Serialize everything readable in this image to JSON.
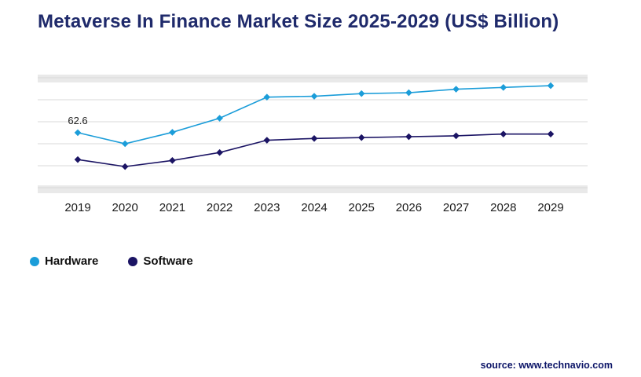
{
  "title": "Metaverse In Finance Market Size 2025-2029 (US$ Billion)",
  "chart_data": {
    "type": "line",
    "title": "Metaverse In Finance Market Size 2025-2029 (US$ Billion)",
    "categories": [
      "2019",
      "2020",
      "2021",
      "2022",
      "2023",
      "2024",
      "2025",
      "2026",
      "2027",
      "2028",
      "2029"
    ],
    "series": [
      {
        "name": "Hardware",
        "color": "#1b9dd9",
        "values": [
          62.6,
          50,
          63,
          79,
          103,
          104,
          107,
          108,
          112,
          114,
          116
        ]
      },
      {
        "name": "Software",
        "color": "#1b1464",
        "values": [
          32,
          24,
          31,
          40,
          54,
          56,
          57,
          58,
          59,
          61,
          61
        ]
      }
    ],
    "xlabel": "",
    "ylabel": "",
    "ylim": [
      0,
      125
    ],
    "grid": true,
    "gridline_values": [
      0,
      25,
      50,
      75,
      100,
      125
    ],
    "annotation": {
      "series": "Hardware",
      "category": "2019",
      "text": "62.6"
    },
    "legend_position": "bottom-left"
  },
  "legend": {
    "items": [
      {
        "label": "Hardware",
        "color": "#1b9dd9"
      },
      {
        "label": "Software",
        "color": "#1b1464"
      }
    ]
  },
  "source": "source: www.technavio.com",
  "colors": {
    "title": "#1f2a6b",
    "grid": "#d9d9d9",
    "band": "#e9e9e9",
    "axis_label": "#1a1a1a",
    "annotation": "#222222",
    "source": "#0b1467"
  }
}
